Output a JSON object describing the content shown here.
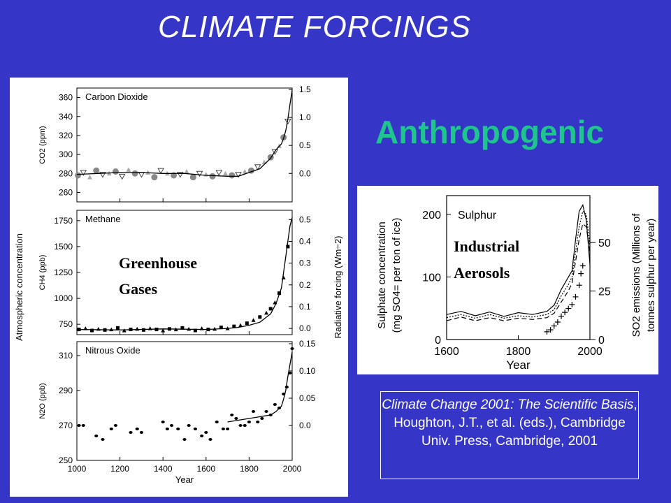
{
  "slide": {
    "title": "CLIMATE FORCINGS",
    "subtitle": "Anthropogenic",
    "citation_italic": "Climate Change 2001: The Scientific Basis",
    "citation_rest": ", Houghton, J.T., et al. (eds.), Cambridge Univ. Press, Cambridge, 2001",
    "colors": {
      "background": "#3535c8",
      "subtitle": "#1fc48e",
      "text": "#ffffff"
    }
  },
  "chart_data": [
    {
      "type": "scatter",
      "panels": [
        {
          "title": "Carbon Dioxide",
          "ylabel_left": "CO2 (ppm)",
          "ylim": [
            250,
            370
          ],
          "left_ticks": [
            "360",
            "340",
            "320",
            "300",
            "280",
            "260"
          ],
          "left_tick_values": [
            360,
            340,
            320,
            300,
            280,
            260
          ],
          "right_ticks": [
            "1.5",
            "1.0",
            "0.5",
            "0.0"
          ],
          "right_tick_values": [
            1.5,
            1.0,
            0.5,
            0.0
          ],
          "right_zero": 280,
          "right_scale": 59,
          "curve": {
            "x": [
              1000,
              1100,
              1200,
              1300,
              1400,
              1500,
              1600,
              1700,
              1750,
              1800,
              1850,
              1900,
              1925,
              1950,
              1960,
              1970,
              1980,
              1990,
              2000
            ],
            "y": [
              279,
              280,
              281,
              281,
              280,
              280,
              278,
              277,
              277,
              281,
              285,
              296,
              305,
              311,
              317,
              325,
              337,
              353,
              368
            ]
          },
          "points": {
            "x": [
              1005,
              1030,
              1060,
              1090,
              1120,
              1150,
              1180,
              1210,
              1240,
              1270,
              1300,
              1330,
              1360,
              1390,
              1420,
              1450,
              1480,
              1510,
              1540,
              1570,
              1600,
              1630,
              1660,
              1690,
              1720,
              1750,
              1780,
              1810,
              1840,
              1870,
              1900,
              1920,
              1940,
              1960,
              1980
            ],
            "y": [
              278,
              281,
              276,
              283,
              279,
              280,
              282,
              277,
              284,
              280,
              279,
              281,
              276,
              283,
              280,
              278,
              279,
              282,
              276,
              280,
              279,
              277,
              281,
              280,
              278,
              279,
              282,
              283,
              287,
              292,
              297,
              303,
              309,
              318,
              335
            ]
          }
        },
        {
          "title": "Methane",
          "ylabel_left": "CH4 (ppb)",
          "ylim": [
            650,
            1850
          ],
          "left_ticks": [
            "1750",
            "1500",
            "1250",
            "1000",
            "750"
          ],
          "left_tick_values": [
            1750,
            1500,
            1250,
            1000,
            750
          ],
          "right_ticks": [
            "0.5",
            "0.4",
            "0.3",
            "0.2",
            "0.1",
            "0.0"
          ],
          "right_tick_values": [
            0.5,
            0.4,
            0.3,
            0.2,
            0.1,
            0.0
          ],
          "right_zero": 710,
          "right_scale": 2100,
          "curve": {
            "x": [
              1000,
              1200,
              1400,
              1600,
              1700,
              1750,
              1800,
              1850,
              1900,
              1925,
              1950,
              1960,
              1970,
              1980,
              1990,
              2000
            ],
            "y": [
              700,
              695,
              705,
              700,
              710,
              720,
              740,
              770,
              850,
              950,
              1100,
              1250,
              1400,
              1550,
              1700,
              1780
            ]
          },
          "points": {
            "x": [
              1010,
              1040,
              1070,
              1100,
              1130,
              1160,
              1190,
              1220,
              1250,
              1280,
              1310,
              1340,
              1370,
              1400,
              1430,
              1460,
              1490,
              1520,
              1550,
              1580,
              1610,
              1640,
              1670,
              1700,
              1730,
              1760,
              1790,
              1820,
              1850,
              1880,
              1900,
              1920,
              1940,
              1960,
              1980
            ],
            "y": [
              700,
              710,
              690,
              705,
              695,
              700,
              715,
              690,
              700,
              705,
              695,
              710,
              700,
              690,
              705,
              700,
              715,
              705,
              690,
              710,
              700,
              705,
              720,
              710,
              730,
              740,
              760,
              790,
              820,
              860,
              900,
              960,
              1050,
              1200,
              1500
            ]
          }
        },
        {
          "title": "Nitrous Oxide",
          "ylabel_left": "N2O (ppb)",
          "ylim": [
            250,
            318
          ],
          "left_ticks": [
            "310",
            "290",
            "270",
            "250"
          ],
          "left_tick_values": [
            310,
            290,
            270,
            250
          ],
          "right_ticks": [
            "0.15",
            "0.10",
            "0.05",
            "0.0"
          ],
          "right_tick_values": [
            0.15,
            0.1,
            0.05,
            0.0
          ],
          "right_zero": 270,
          "right_scale": 312,
          "xlabel": "Year",
          "x_ticks": [
            "1000",
            "1200",
            "1400",
            "1600",
            "1800",
            "2000"
          ],
          "x_tick_values": [
            1000,
            1200,
            1400,
            1600,
            1800,
            2000
          ],
          "xlim": [
            1000,
            2000
          ],
          "curve": {
            "x": [
              1700,
              1750,
              1800,
              1850,
              1900,
              1925,
              1950,
              1960,
              1970,
              1980,
              1990,
              2000
            ],
            "y": [
              272,
              273,
              274,
              275,
              276,
              278,
              281,
              285,
              290,
              298,
              305,
              312
            ]
          },
          "points": {
            "x": [
              1010,
              1030,
              1090,
              1120,
              1160,
              1180,
              1250,
              1280,
              1300,
              1400,
              1420,
              1440,
              1470,
              1500,
              1520,
              1550,
              1580,
              1600,
              1620,
              1650,
              1680,
              1700,
              1720,
              1740,
              1760,
              1780,
              1800,
              1820,
              1840,
              1860,
              1880,
              1900,
              1920,
              1940,
              1960,
              1975,
              1990,
              2000
            ],
            "y": [
              270,
              270,
              264,
              262,
              268,
              270,
              266,
              268,
              266,
              272,
              268,
              270,
              268,
              262,
              270,
              268,
              264,
              266,
              262,
              272,
              268,
              268,
              276,
              274,
              270,
              270,
              272,
              278,
              272,
              274,
              278,
              276,
              282,
              280,
              288,
              292,
              300,
              314
            ]
          }
        }
      ],
      "shared_ylabel": "Atmospheric concentration",
      "right_ylabel": "Radiative forcing  (Wm−2)",
      "overlay_label_line1": "Greenhouse",
      "overlay_label_line2": "Gases"
    },
    {
      "type": "line",
      "title": "Sulphur",
      "xlabel": "Year",
      "ylabel_left_line1": "Sulphate concentration",
      "ylabel_left_line2": "(mg SO4= per ton of ice)",
      "ylabel_right_line1": "SO2 emissions (Millions of",
      "ylabel_right_line2": "tonnes sulphur per year)",
      "xlim": [
        1600,
        2000
      ],
      "ylim": [
        0,
        230
      ],
      "x_ticks": [
        "1600",
        "1800",
        "2000"
      ],
      "x_tick_values": [
        1600,
        1800,
        2000
      ],
      "left_ticks": [
        "200",
        "100",
        "0"
      ],
      "left_tick_values": [
        200,
        100,
        0
      ],
      "right_ticks": [
        "50",
        "25",
        "0"
      ],
      "right_tick_values": [
        50,
        25,
        0
      ],
      "right_scale": 3.1,
      "series": [
        {
          "x": [
            1600,
            1640,
            1680,
            1720,
            1760,
            1800,
            1840,
            1880,
            1900,
            1920,
            1940,
            1950,
            1960,
            1970,
            1980,
            1990,
            2000
          ],
          "y": [
            40,
            45,
            38,
            44,
            37,
            43,
            40,
            45,
            55,
            80,
            100,
            110,
            160,
            205,
            215,
            190,
            120
          ]
        },
        {
          "x": [
            1600,
            1640,
            1680,
            1720,
            1760,
            1800,
            1840,
            1880,
            1900,
            1920,
            1940,
            1950,
            1960,
            1970,
            1980,
            1990,
            2000
          ],
          "y": [
            35,
            40,
            34,
            40,
            34,
            38,
            36,
            40,
            48,
            70,
            88,
            100,
            140,
            180,
            205,
            200,
            150
          ]
        },
        {
          "x": [
            1600,
            1640,
            1680,
            1720,
            1760,
            1800,
            1840,
            1880,
            1900,
            1920,
            1940,
            1950,
            1960,
            1970,
            1980,
            1990,
            2000
          ],
          "y": [
            30,
            36,
            30,
            35,
            30,
            34,
            32,
            35,
            42,
            60,
            78,
            90,
            125,
            160,
            185,
            180,
            140
          ]
        }
      ],
      "emissions": {
        "x": [
          1880,
          1890,
          1900,
          1910,
          1920,
          1930,
          1940,
          1950,
          1960,
          1970,
          1975,
          1980
        ],
        "y": [
          4,
          5,
          7,
          9,
          12,
          14,
          16,
          18,
          22,
          28,
          34,
          38
        ]
      },
      "overlay_label_line1": "Industrial",
      "overlay_label_line2": "Aerosols"
    }
  ]
}
